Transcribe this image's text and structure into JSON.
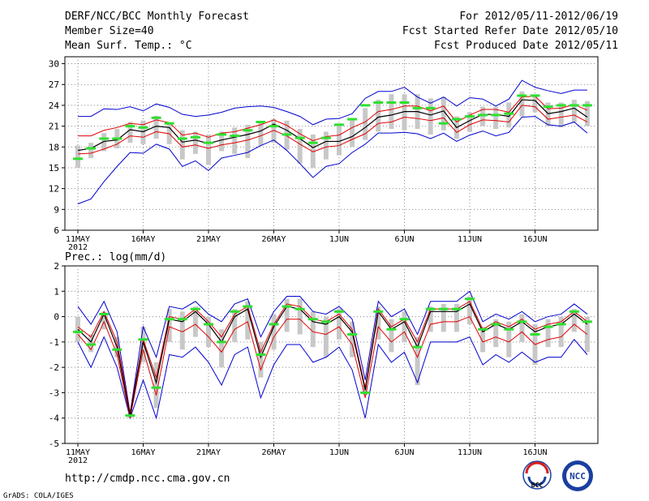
{
  "header": {
    "title": "DERF/NCC/BCC Monthly Forecast",
    "member_size": "Member Size=40",
    "variable": "Mean Surf. Temp.: °C",
    "period": "For 2012/05/11-2012/06/19",
    "fcst_started": "Fcst Started Refer Date 2012/05/10",
    "fcst_produced": "Fcst Produced Date 2012/05/11"
  },
  "footer": {
    "url": "http://cmdp.ncc.cma.gov.cn",
    "credit": "GrADS: COLA/IGES",
    "logo_bcc": "BCC",
    "logo_ncc": "NCC"
  },
  "colors": {
    "box": "#c8c8c8",
    "max_min": "#0000d0",
    "spread": "#e00000",
    "mean": "#000000",
    "observed": "#2ee02e",
    "grid": "#888888"
  },
  "chart_data": [
    {
      "id": "temperature",
      "type": "line",
      "title": "Mean Surf. Temp.: °C",
      "ylim": [
        6,
        31
      ],
      "yticks": [
        6,
        9,
        12,
        15,
        18,
        21,
        24,
        27,
        30
      ],
      "x_tick_labels": [
        "11MAY",
        "16MAY",
        "21MAY",
        "26MAY",
        "1JUN",
        "6JUN",
        "11JUN",
        "16JUN"
      ],
      "x_year_label": "2012",
      "grid": true,
      "days": 40,
      "mean": [
        17.5,
        17.8,
        18.8,
        19.0,
        20.5,
        20.2,
        21.0,
        20.8,
        18.7,
        19.0,
        18.5,
        19.0,
        19.4,
        19.8,
        20.3,
        21.3,
        20.4,
        19.2,
        17.9,
        18.8,
        18.8,
        19.5,
        20.8,
        22.3,
        22.6,
        23.1,
        23.1,
        22.6,
        23.2,
        20.8,
        21.8,
        22.7,
        22.7,
        22.4,
        24.8,
        24.7,
        22.8,
        23.1,
        23.6,
        22.3
      ],
      "upper_spread": [
        19.6,
        19.6,
        20.4,
        20.8,
        21.4,
        21.2,
        21.9,
        21.5,
        19.7,
        20.0,
        19.4,
        20.0,
        20.2,
        20.7,
        21.2,
        21.9,
        21.1,
        19.9,
        18.9,
        19.5,
        19.7,
        20.8,
        21.6,
        23.1,
        23.4,
        23.9,
        23.9,
        23.2,
        23.9,
        21.6,
        22.6,
        23.4,
        23.4,
        23.0,
        25.2,
        25.3,
        23.5,
        23.6,
        24.1,
        23.3
      ],
      "lower_spread": [
        17.0,
        17.1,
        17.7,
        18.4,
        19.6,
        19.4,
        20.2,
        19.9,
        18.0,
        18.3,
        17.8,
        18.3,
        18.6,
        19.0,
        19.6,
        20.4,
        19.6,
        18.4,
        17.3,
        18.0,
        18.2,
        19.1,
        19.9,
        21.4,
        21.6,
        22.3,
        22.1,
        21.8,
        22.2,
        20.1,
        21.2,
        21.9,
        21.8,
        21.6,
        24.0,
        23.8,
        22.0,
        22.3,
        22.6,
        21.6
      ],
      "max": [
        22.4,
        22.4,
        23.5,
        23.4,
        23.8,
        23.2,
        24.2,
        23.7,
        22.7,
        22.4,
        22.6,
        23.0,
        23.6,
        23.8,
        23.9,
        23.7,
        23.1,
        22.4,
        21.2,
        22.0,
        22.1,
        22.8,
        25.0,
        26.0,
        26.0,
        26.6,
        25.2,
        24.3,
        25.2,
        23.9,
        25.1,
        24.9,
        23.9,
        24.9,
        27.6,
        26.6,
        26.1,
        25.7,
        26.2,
        26.2
      ],
      "min": [
        9.8,
        10.5,
        13.0,
        15.2,
        17.2,
        17.1,
        18.4,
        17.7,
        15.2,
        16.0,
        14.6,
        16.4,
        16.8,
        17.2,
        18.2,
        19.0,
        17.5,
        15.6,
        13.6,
        15.2,
        15.6,
        17.2,
        18.4,
        20.0,
        20.0,
        20.1,
        19.9,
        19.2,
        20.0,
        18.8,
        19.7,
        20.3,
        19.6,
        20.1,
        22.3,
        22.4,
        21.2,
        21.0,
        21.6,
        20.0
      ],
      "box_top": [
        18.2,
        18.6,
        20.0,
        20.6,
        21.6,
        21.8,
        22.5,
        21.4,
        20.4,
        20.2,
        19.8,
        20.2,
        20.8,
        21.2,
        21.6,
        22.0,
        21.8,
        20.6,
        19.8,
        20.2,
        21.4,
        22.0,
        23.6,
        24.8,
        25.6,
        25.6,
        25.6,
        25.0,
        25.2,
        22.4,
        23.0,
        23.8,
        23.8,
        24.4,
        26.0,
        25.6,
        24.4,
        24.4,
        24.8,
        24.6
      ],
      "box_bottom": [
        15.0,
        16.4,
        17.4,
        17.8,
        18.6,
        18.4,
        19.2,
        18.4,
        16.2,
        17.0,
        15.4,
        17.4,
        17.0,
        16.4,
        18.2,
        18.6,
        17.6,
        15.6,
        15.0,
        16.2,
        16.8,
        18.0,
        19.0,
        20.2,
        20.6,
        20.4,
        20.6,
        19.8,
        20.4,
        19.2,
        20.2,
        21.0,
        20.6,
        20.8,
        22.4,
        23.0,
        21.0,
        20.8,
        21.6,
        21.0
      ],
      "observed": [
        16.3,
        17.8,
        19.2,
        19.2,
        21.0,
        20.8,
        22.2,
        21.4,
        19.2,
        19.4,
        18.6,
        19.8,
        19.6,
        20.4,
        21.6,
        21.0,
        19.8,
        19.3,
        18.6,
        19.3,
        21.2,
        22.0,
        24.0,
        24.4,
        24.4,
        24.4,
        23.6,
        23.6,
        21.4,
        22.0,
        22.4,
        22.6,
        22.6,
        22.8,
        25.4,
        25.4,
        23.8,
        24.0,
        24.0,
        24.0
      ]
    },
    {
      "id": "precipitation",
      "type": "line",
      "title": "Prec.: log(mm/d)",
      "ylim": [
        -5,
        2
      ],
      "yticks": [
        -5,
        -4,
        -3,
        -2,
        -1,
        0,
        1,
        2
      ],
      "x_tick_labels": [
        "11MAY",
        "16MAY",
        "21MAY",
        "26MAY",
        "1JUN",
        "6JUN",
        "11JUN",
        "16JUN"
      ],
      "x_year_label": "2012",
      "grid": true,
      "days": 40,
      "mean": [
        -0.5,
        -1.0,
        0.1,
        -1.2,
        -3.9,
        -1.0,
        -2.6,
        -0.1,
        -0.2,
        0.2,
        -0.3,
        -1.0,
        0.0,
        0.3,
        -1.6,
        -0.4,
        0.4,
        0.3,
        -0.2,
        -0.3,
        0.0,
        -0.6,
        -2.9,
        0.2,
        -0.5,
        -0.2,
        -1.2,
        0.2,
        0.2,
        0.2,
        0.5,
        -0.6,
        -0.3,
        -0.5,
        -0.2,
        -0.6,
        -0.4,
        -0.3,
        0.1,
        -0.3
      ],
      "upper_spread": [
        -0.4,
        -0.8,
        0.2,
        -1.0,
        -3.8,
        -0.9,
        -2.4,
        0.0,
        -0.1,
        0.3,
        -0.2,
        -0.8,
        0.1,
        0.4,
        -1.4,
        -0.3,
        0.5,
        0.4,
        -0.1,
        -0.2,
        0.1,
        -0.5,
        -2.8,
        0.3,
        -0.4,
        -0.1,
        -1.0,
        0.3,
        0.3,
        0.3,
        0.6,
        -0.5,
        -0.2,
        -0.4,
        -0.1,
        -0.5,
        -0.3,
        -0.2,
        0.2,
        -0.2
      ],
      "lower_spread": [
        -0.7,
        -1.3,
        -0.2,
        -1.5,
        -4.0,
        -1.3,
        -3.1,
        -0.4,
        -0.6,
        -0.3,
        -0.8,
        -1.4,
        -0.5,
        -0.2,
        -2.1,
        -0.8,
        -0.1,
        -0.1,
        -0.6,
        -0.7,
        -0.4,
        -1.1,
        -3.2,
        -0.4,
        -1.0,
        -0.6,
        -1.6,
        -0.3,
        -0.2,
        -0.2,
        0.0,
        -1.0,
        -0.8,
        -1.0,
        -0.6,
        -1.1,
        -0.9,
        -0.8,
        -0.3,
        -0.7
      ],
      "max": [
        0.4,
        -0.3,
        0.6,
        -0.6,
        -3.8,
        -0.4,
        -1.6,
        0.4,
        0.3,
        0.6,
        0.1,
        -0.2,
        0.5,
        0.7,
        -0.8,
        0.2,
        0.8,
        0.8,
        0.2,
        0.1,
        0.4,
        -0.1,
        -2.5,
        0.6,
        0.0,
        0.3,
        -0.7,
        0.6,
        0.6,
        0.6,
        1.0,
        -0.2,
        0.1,
        -0.1,
        0.2,
        -0.2,
        0.0,
        0.1,
        0.5,
        0.1
      ],
      "min": [
        -1.0,
        -2.0,
        -0.8,
        -2.0,
        -4.0,
        -2.5,
        -4.0,
        -1.5,
        -1.6,
        -1.2,
        -1.8,
        -2.7,
        -1.5,
        -1.2,
        -3.2,
        -1.9,
        -1.1,
        -1.1,
        -1.8,
        -1.6,
        -1.2,
        -2.1,
        -4.0,
        -1.1,
        -1.8,
        -1.4,
        -2.6,
        -1.0,
        -1.0,
        -1.0,
        -0.8,
        -1.9,
        -1.5,
        -1.8,
        -1.4,
        -1.8,
        -1.6,
        -1.6,
        -0.9,
        -1.5
      ],
      "box_top": [
        0.0,
        -0.7,
        0.2,
        -0.8,
        -3.8,
        -0.4,
        -1.8,
        0.3,
        0.2,
        0.4,
        0.0,
        -0.5,
        0.3,
        0.6,
        -1.0,
        0.1,
        0.7,
        0.7,
        0.2,
        0.0,
        0.3,
        -0.2,
        -2.7,
        0.4,
        -0.1,
        0.2,
        -0.8,
        0.4,
        0.5,
        0.5,
        0.8,
        -0.4,
        -0.1,
        -0.2,
        0.1,
        -0.3,
        -0.1,
        0.0,
        0.3,
        0.0
      ],
      "box_bottom": [
        -1.0,
        -1.4,
        -0.5,
        -1.6,
        -4.0,
        -1.8,
        -3.6,
        -1.0,
        -1.3,
        -0.8,
        -1.2,
        -2.0,
        -1.0,
        -0.9,
        -2.4,
        -1.3,
        -0.6,
        -0.7,
        -1.2,
        -1.6,
        -0.9,
        -1.6,
        -3.1,
        -0.9,
        -1.4,
        -1.0,
        -2.7,
        -0.6,
        -0.6,
        -0.6,
        -0.3,
        -1.4,
        -1.2,
        -1.6,
        -1.0,
        -1.9,
        -1.2,
        -1.2,
        -0.6,
        -1.4
      ],
      "observed": [
        -0.6,
        -1.1,
        0.1,
        -1.3,
        -3.9,
        -0.9,
        -2.8,
        -0.1,
        -0.1,
        0.3,
        -0.3,
        -1.0,
        0.2,
        0.4,
        -1.5,
        -0.3,
        0.4,
        0.3,
        -0.1,
        -0.2,
        0.2,
        -0.7,
        -3.0,
        0.2,
        -0.5,
        -0.1,
        -1.2,
        0.3,
        0.3,
        0.3,
        0.7,
        -0.5,
        -0.3,
        -0.5,
        -0.2,
        -0.7,
        -0.4,
        -0.3,
        0.2,
        -0.2
      ]
    }
  ]
}
